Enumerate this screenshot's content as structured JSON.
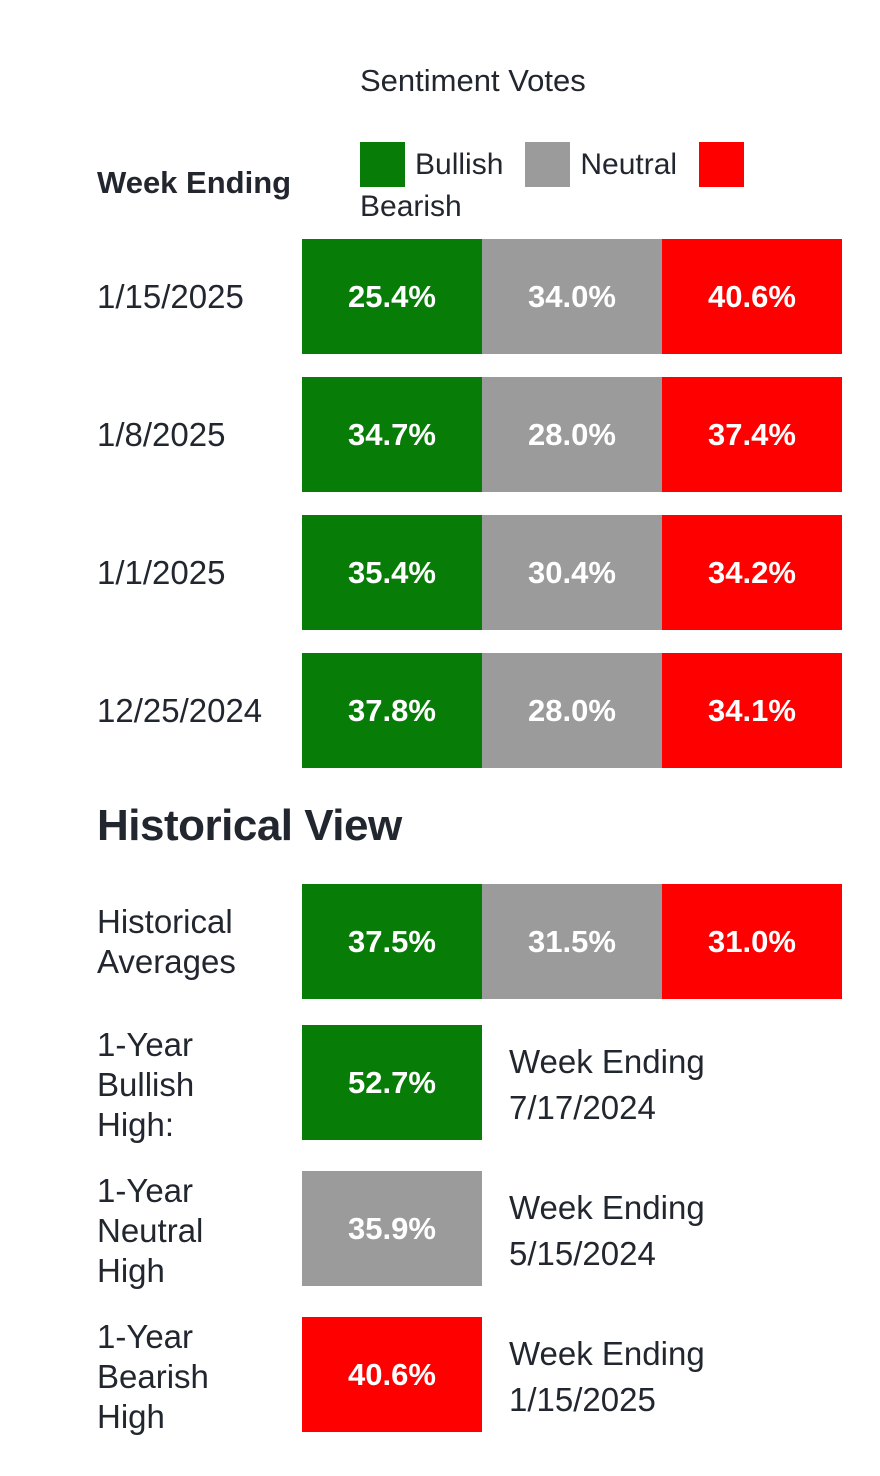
{
  "header": {
    "title": "Sentiment Votes",
    "week_ending_label": "Week Ending",
    "legend": [
      {
        "label": "Bullish",
        "color": "#077d07"
      },
      {
        "label": "Neutral",
        "color": "#9b9b9b"
      },
      {
        "label": "Bearish",
        "color": "#fe0000"
      }
    ]
  },
  "weekly_rows": [
    {
      "week_ending": "1/15/2025",
      "bullish": "25.4%",
      "neutral": "34.0%",
      "bearish": "40.6%"
    },
    {
      "week_ending": "1/8/2025",
      "bullish": "34.7%",
      "neutral": "28.0%",
      "bearish": "37.4%"
    },
    {
      "week_ending": "1/1/2025",
      "bullish": "35.4%",
      "neutral": "30.4%",
      "bearish": "34.2%"
    },
    {
      "week_ending": "12/25/2024",
      "bullish": "37.8%",
      "neutral": "28.0%",
      "bearish": "34.1%"
    }
  ],
  "historical": {
    "heading": "Historical View",
    "averages": {
      "label": "Historical Averages",
      "bullish": "37.5%",
      "neutral": "31.5%",
      "bearish": "31.0%"
    },
    "extremes": [
      {
        "label": "1-Year Bullish High:",
        "value": "52.7%",
        "note_line1": "Week Ending",
        "note_line2": "7/17/2024"
      },
      {
        "label": "1-Year Neutral High",
        "value": "35.9%",
        "note_line1": "Week Ending",
        "note_line2": "5/15/2024"
      },
      {
        "label": "1-Year Bearish High",
        "value": "40.6%",
        "note_line1": "Week Ending",
        "note_line2": "1/15/2025"
      }
    ]
  },
  "colors": {
    "bullish": "#077d07",
    "neutral": "#9b9b9b",
    "bearish": "#fe0000",
    "text": "#22272f",
    "value_text": "#ffffff",
    "background": "#ffffff"
  },
  "chart_data": {
    "type": "bar",
    "title": "Sentiment Votes",
    "categories": [
      "1/15/2025",
      "1/8/2025",
      "1/1/2025",
      "12/25/2024"
    ],
    "series": [
      {
        "name": "Bullish",
        "color": "#077d07",
        "values": [
          25.4,
          34.7,
          35.4,
          37.8
        ]
      },
      {
        "name": "Neutral",
        "color": "#9b9b9b",
        "values": [
          34.0,
          28.0,
          30.4,
          28.0
        ]
      },
      {
        "name": "Bearish",
        "color": "#fe0000",
        "values": [
          40.6,
          37.4,
          34.2,
          34.1
        ]
      }
    ],
    "historical_averages": {
      "Bullish": 37.5,
      "Neutral": 31.5,
      "Bearish": 31.0
    },
    "one_year_highs": [
      {
        "name": "Bullish",
        "value": 52.7,
        "week_ending": "7/17/2024"
      },
      {
        "name": "Neutral",
        "value": 35.9,
        "week_ending": "5/15/2024"
      },
      {
        "name": "Bearish",
        "value": 40.6,
        "week_ending": "1/15/2025"
      }
    ],
    "legend_position": "top",
    "layout_note": "horizontal stacked rows, equal-width segments with value labels inside"
  }
}
